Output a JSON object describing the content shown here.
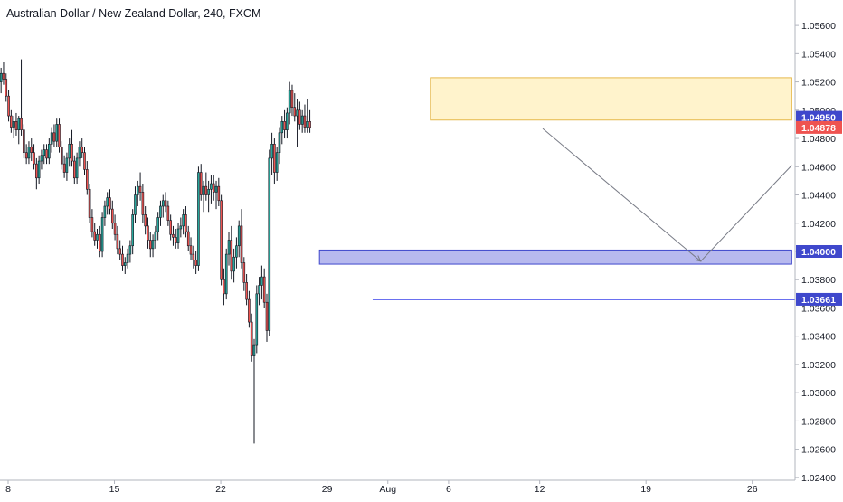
{
  "chart_data": {
    "type": "candlestick",
    "title": "Australian Dollar / New Zealand Dollar, 240, FXCM",
    "ylim": [
      1.0238,
      1.0578
    ],
    "y_ticks": [
      "1.05600",
      "1.05400",
      "1.05200",
      "1.05000",
      "1.04800",
      "1.04600",
      "1.04400",
      "1.04200",
      "1.04000",
      "1.03800",
      "1.03600",
      "1.03400",
      "1.03200",
      "1.03000",
      "1.02800",
      "1.02600",
      "1.02400"
    ],
    "x_ticks": [
      {
        "label": "8",
        "day": 0
      },
      {
        "label": "15",
        "day": 7
      },
      {
        "label": "22",
        "day": 14
      },
      {
        "label": "29",
        "day": 21
      },
      {
        "label": "Aug",
        "day": 25
      },
      {
        "label": "6",
        "day": 29
      },
      {
        "label": "12",
        "day": 35
      },
      {
        "label": "19",
        "day": 42
      },
      {
        "label": "26",
        "day": 49
      }
    ],
    "price_labels": [
      {
        "text": "1.04950",
        "value": 1.0495,
        "color": "#3f48cc",
        "text_color": "#ffffff"
      },
      {
        "text": "1.04878",
        "value": 1.04878,
        "color": "#ef5350",
        "text_color": "#ffffff"
      },
      {
        "text": "1.04000",
        "value": 1.04,
        "color": "#3f48cc",
        "text_color": "#ffffff"
      },
      {
        "text": "1.03661",
        "value": 1.03661,
        "color": "#3f48cc",
        "text_color": "#ffffff"
      }
    ],
    "horizontal_lines": [
      {
        "value": 1.0495,
        "color": "#6a70f0",
        "from_day": -1
      },
      {
        "value": 1.04878,
        "color": "#f4a0a0",
        "from_day": -1
      },
      {
        "value": 1.03661,
        "color": "#6a70f0",
        "from_day": 24
      }
    ],
    "zones": [
      {
        "y1": 1.0523,
        "y2": 1.0493,
        "x1_day": 27.8,
        "x2_day": 51.6,
        "fill": "#fff3cc",
        "stroke": "#e6b84a"
      },
      {
        "y1": 1.0401,
        "y2": 1.0391,
        "x1_day": 20.5,
        "x2_day": 51.6,
        "fill": "#b7b9ee",
        "stroke": "#3f48cc"
      }
    ],
    "projection": [
      {
        "day": 35.2,
        "value": 1.0487
      },
      {
        "day": 45.6,
        "value": 1.0393
      },
      {
        "day": 51.6,
        "value": 1.0461
      }
    ],
    "colors": {
      "up": "#26a69a",
      "down": "#ef5350",
      "wick": "#131722",
      "axis_text": "#131722",
      "axis_line": "#b2b5be"
    },
    "candles": [
      [
        1.0534,
        1.054,
        1.0526,
        1.053
      ],
      [
        1.053,
        1.0535,
        1.0518,
        1.0522
      ],
      [
        1.0522,
        1.053,
        1.0508,
        1.0512
      ],
      [
        1.0512,
        1.0528,
        1.0505,
        1.0524
      ],
      [
        1.0524,
        1.0534,
        1.0516,
        1.052
      ],
      [
        1.052,
        1.053,
        1.0512,
        1.0526
      ],
      [
        1.0526,
        1.0534,
        1.0518,
        1.0522
      ],
      [
        1.0522,
        1.0526,
        1.0506,
        1.051
      ],
      [
        1.051,
        1.0514,
        1.0492,
        1.0496
      ],
      [
        1.0496,
        1.05,
        1.0484,
        1.0488
      ],
      [
        1.0488,
        1.0496,
        1.048,
        1.0492
      ],
      [
        1.0492,
        1.0498,
        1.0482,
        1.0486
      ],
      [
        1.0486,
        1.0496,
        1.0476,
        1.0494
      ],
      [
        1.0494,
        1.0536,
        1.0482,
        1.0486
      ],
      [
        1.0486,
        1.049,
        1.0466,
        1.047
      ],
      [
        1.047,
        1.0476,
        1.0462,
        1.0466
      ],
      [
        1.0466,
        1.0478,
        1.0462,
        1.0474
      ],
      [
        1.0474,
        1.048,
        1.0464,
        1.047
      ],
      [
        1.047,
        1.0476,
        1.0458,
        1.0462
      ],
      [
        1.0462,
        1.0466,
        1.0444,
        1.0452
      ],
      [
        1.0452,
        1.0468,
        1.0448,
        1.0464
      ],
      [
        1.0464,
        1.0472,
        1.0458,
        1.0468
      ],
      [
        1.0468,
        1.0476,
        1.0462,
        1.0472
      ],
      [
        1.0472,
        1.0476,
        1.0462,
        1.0466
      ],
      [
        1.0466,
        1.048,
        1.0462,
        1.0476
      ],
      [
        1.0476,
        1.0488,
        1.047,
        1.0484
      ],
      [
        1.0484,
        1.049,
        1.0474,
        1.0478
      ],
      [
        1.0478,
        1.0494,
        1.0474,
        1.049
      ],
      [
        1.049,
        1.0494,
        1.047,
        1.0474
      ],
      [
        1.0474,
        1.0478,
        1.0458,
        1.0462
      ],
      [
        1.0462,
        1.0468,
        1.0452,
        1.0456
      ],
      [
        1.0456,
        1.047,
        1.045,
        1.0466
      ],
      [
        1.0466,
        1.048,
        1.046,
        1.0476
      ],
      [
        1.0476,
        1.0486,
        1.046,
        1.0464
      ],
      [
        1.0464,
        1.0468,
        1.0448,
        1.0452
      ],
      [
        1.0452,
        1.047,
        1.0448,
        1.0466
      ],
      [
        1.0466,
        1.0478,
        1.046,
        1.0474
      ],
      [
        1.0474,
        1.048,
        1.0466,
        1.047
      ],
      [
        1.047,
        1.0474,
        1.0454,
        1.0458
      ],
      [
        1.0458,
        1.0464,
        1.044,
        1.0444
      ],
      [
        1.0444,
        1.0448,
        1.042,
        1.0424
      ],
      [
        1.0424,
        1.043,
        1.041,
        1.0414
      ],
      [
        1.0414,
        1.042,
        1.0404,
        1.0408
      ],
      [
        1.0408,
        1.0416,
        1.0402,
        1.0412
      ],
      [
        1.0412,
        1.0418,
        1.0396,
        1.04
      ],
      [
        1.04,
        1.0428,
        1.0396,
        1.0424
      ],
      [
        1.0424,
        1.0436,
        1.0418,
        1.0432
      ],
      [
        1.0432,
        1.0442,
        1.0426,
        1.0438
      ],
      [
        1.0438,
        1.0444,
        1.0426,
        1.043
      ],
      [
        1.043,
        1.0436,
        1.0416,
        1.042
      ],
      [
        1.042,
        1.0426,
        1.0408,
        1.0412
      ],
      [
        1.0412,
        1.0418,
        1.0398,
        1.0402
      ],
      [
        1.0402,
        1.0408,
        1.0394,
        1.0398
      ],
      [
        1.0398,
        1.0404,
        1.0386,
        1.039
      ],
      [
        1.039,
        1.0396,
        1.0384,
        1.0392
      ],
      [
        1.0392,
        1.0402,
        1.0388,
        1.0398
      ],
      [
        1.0398,
        1.0408,
        1.0392,
        1.0404
      ],
      [
        1.0404,
        1.043,
        1.0398,
        1.0426
      ],
      [
        1.0426,
        1.0446,
        1.042,
        1.044
      ],
      [
        1.044,
        1.045,
        1.0432,
        1.0446
      ],
      [
        1.0446,
        1.0456,
        1.0436,
        1.0442
      ],
      [
        1.0442,
        1.0448,
        1.042,
        1.0426
      ],
      [
        1.0426,
        1.0432,
        1.0412,
        1.0418
      ],
      [
        1.0418,
        1.0424,
        1.0402,
        1.0408
      ],
      [
        1.0408,
        1.0414,
        1.0396,
        1.0402
      ],
      [
        1.0402,
        1.0412,
        1.0396,
        1.0408
      ],
      [
        1.0408,
        1.0418,
        1.0402,
        1.0414
      ],
      [
        1.0414,
        1.0428,
        1.0408,
        1.0424
      ],
      [
        1.0424,
        1.0436,
        1.0418,
        1.0432
      ],
      [
        1.0432,
        1.044,
        1.0424,
        1.0436
      ],
      [
        1.0436,
        1.0442,
        1.0428,
        1.0432
      ],
      [
        1.0432,
        1.0436,
        1.0418,
        1.0422
      ],
      [
        1.0422,
        1.0426,
        1.0408,
        1.0412
      ],
      [
        1.0412,
        1.0418,
        1.0404,
        1.041
      ],
      [
        1.041,
        1.0416,
        1.0402,
        1.0406
      ],
      [
        1.0406,
        1.042,
        1.0402,
        1.0416
      ],
      [
        1.0416,
        1.0424,
        1.041,
        1.0418
      ],
      [
        1.0418,
        1.043,
        1.0412,
        1.0426
      ],
      [
        1.0426,
        1.0432,
        1.041,
        1.0414
      ],
      [
        1.0414,
        1.0418,
        1.04,
        1.0404
      ],
      [
        1.0404,
        1.041,
        1.0394,
        1.0398
      ],
      [
        1.0398,
        1.0404,
        1.0388,
        1.0394
      ],
      [
        1.0394,
        1.04,
        1.0384,
        1.039
      ],
      [
        1.039,
        1.046,
        1.0386,
        1.0456
      ],
      [
        1.0456,
        1.0462,
        1.0436,
        1.044
      ],
      [
        1.044,
        1.045,
        1.0428,
        1.0446
      ],
      [
        1.0446,
        1.0456,
        1.0436,
        1.044
      ],
      [
        1.044,
        1.045,
        1.0428,
        1.0444
      ],
      [
        1.0444,
        1.0454,
        1.0434,
        1.0448
      ],
      [
        1.0448,
        1.0454,
        1.0436,
        1.0442
      ],
      [
        1.0442,
        1.045,
        1.043,
        1.0446
      ],
      [
        1.0446,
        1.0452,
        1.0432,
        1.0436
      ],
      [
        1.0436,
        1.044,
        1.0376,
        1.038
      ],
      [
        1.038,
        1.0388,
        1.0362,
        1.037
      ],
      [
        1.037,
        1.0402,
        1.0366,
        1.0398
      ],
      [
        1.0398,
        1.0414,
        1.039,
        1.0408
      ],
      [
        1.0408,
        1.0418,
        1.038,
        1.0386
      ],
      [
        1.0386,
        1.0402,
        1.0378,
        1.0396
      ],
      [
        1.0396,
        1.041,
        1.0388,
        1.0404
      ],
      [
        1.0404,
        1.0422,
        1.0396,
        1.0418
      ],
      [
        1.0418,
        1.043,
        1.0388,
        1.0392
      ],
      [
        1.0392,
        1.0396,
        1.0372,
        1.0378
      ],
      [
        1.0378,
        1.0384,
        1.0362,
        1.0366
      ],
      [
        1.0366,
        1.0372,
        1.0346,
        1.035
      ],
      [
        1.035,
        1.0356,
        1.0322,
        1.0326
      ],
      [
        1.0326,
        1.0338,
        1.0264,
        1.0334
      ],
      [
        1.0334,
        1.0376,
        1.0328,
        1.037
      ],
      [
        1.037,
        1.0382,
        1.0362,
        1.0376
      ],
      [
        1.0376,
        1.039,
        1.0366,
        1.0382
      ],
      [
        1.0382,
        1.0388,
        1.036,
        1.0364
      ],
      [
        1.0364,
        1.037,
        1.0336,
        1.0344
      ],
      [
        1.0344,
        1.0472,
        1.034,
        1.0466
      ],
      [
        1.0466,
        1.0484,
        1.0454,
        1.0476
      ],
      [
        1.0476,
        1.048,
        1.0448,
        1.0456
      ],
      [
        1.0456,
        1.0474,
        1.045,
        1.047
      ],
      [
        1.047,
        1.0488,
        1.0462,
        1.0484
      ],
      [
        1.0484,
        1.0496,
        1.0476,
        1.0492
      ],
      [
        1.0492,
        1.05,
        1.048,
        1.0486
      ],
      [
        1.0486,
        1.0502,
        1.048,
        1.0498
      ],
      [
        1.0498,
        1.052,
        1.049,
        1.0514
      ],
      [
        1.0514,
        1.0518,
        1.0496,
        1.0502
      ],
      [
        1.0502,
        1.0512,
        1.0492,
        1.0496
      ],
      [
        1.0496,
        1.0508,
        1.0474,
        1.05
      ],
      [
        1.05,
        1.0506,
        1.0486,
        1.049
      ],
      [
        1.049,
        1.05,
        1.0484,
        1.0496
      ],
      [
        1.0496,
        1.0504,
        1.0484,
        1.0488
      ],
      [
        1.0488,
        1.0508,
        1.0484,
        1.0492
      ],
      [
        1.0492,
        1.05,
        1.0484,
        1.04878
      ]
    ]
  }
}
